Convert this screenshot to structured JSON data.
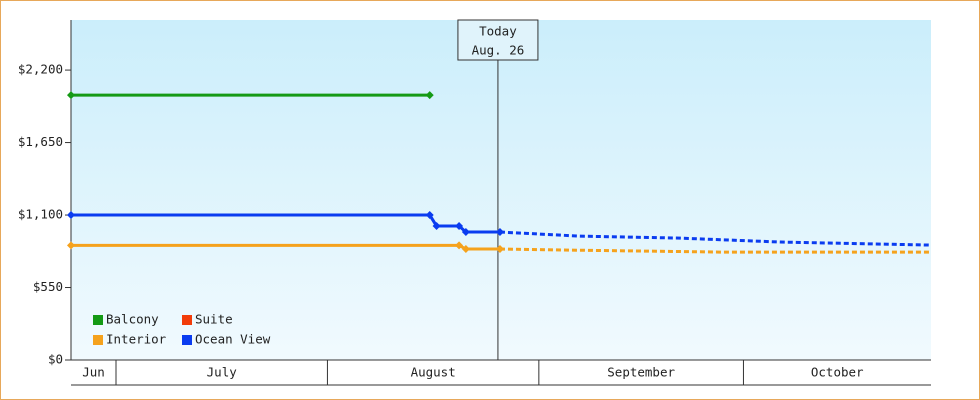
{
  "chart_data": {
    "type": "line",
    "xlim": [
      -6.6,
      119.5
    ],
    "ylim": [
      0,
      2580
    ],
    "yticks": [
      {
        "value": 0,
        "label": "$0"
      },
      {
        "value": 550,
        "label": "$550"
      },
      {
        "value": 1100,
        "label": "$1,100"
      },
      {
        "value": 1650,
        "label": "$1,650"
      },
      {
        "value": 2200,
        "label": "$2,200"
      }
    ],
    "months": [
      {
        "label": "Jun",
        "start": -6.6,
        "end": 0
      },
      {
        "label": "July",
        "start": 0,
        "end": 31
      },
      {
        "label": "August",
        "start": 31,
        "end": 62
      },
      {
        "label": "September",
        "start": 62,
        "end": 92
      },
      {
        "label": "October",
        "start": 92,
        "end": 119.5
      }
    ],
    "annotation": {
      "x": 56,
      "lines": [
        "Today",
        "Aug. 26"
      ]
    },
    "series": [
      {
        "name": "Balcony",
        "color": "#159a15",
        "x": [
          -6.6,
          46
        ],
        "values": [
          2010,
          2010
        ]
      },
      {
        "name": "Suite",
        "color": "#f23c0a",
        "x": [],
        "values": []
      },
      {
        "name": "Interior",
        "color": "#f5a21d",
        "x": [
          -6.6,
          50.3,
          51.3,
          56.3
        ],
        "values": [
          870,
          870,
          842,
          842
        ],
        "forecast": {
          "x": [
            56.3,
            66.5,
            88.5,
            119.5
          ],
          "values": [
            842,
            834,
            819,
            819
          ]
        }
      },
      {
        "name": "Ocean View",
        "color": "#0a3cf0",
        "x": [
          -6.6,
          46,
          47,
          50.3,
          51.3,
          56.3
        ],
        "values": [
          1100,
          1100,
          1017,
          1017,
          971,
          971
        ],
        "forecast": {
          "x": [
            56.3,
            68,
            82.7,
            97.4,
            119.5
          ],
          "values": [
            971,
            940,
            925,
            895,
            872
          ]
        }
      }
    ]
  }
}
